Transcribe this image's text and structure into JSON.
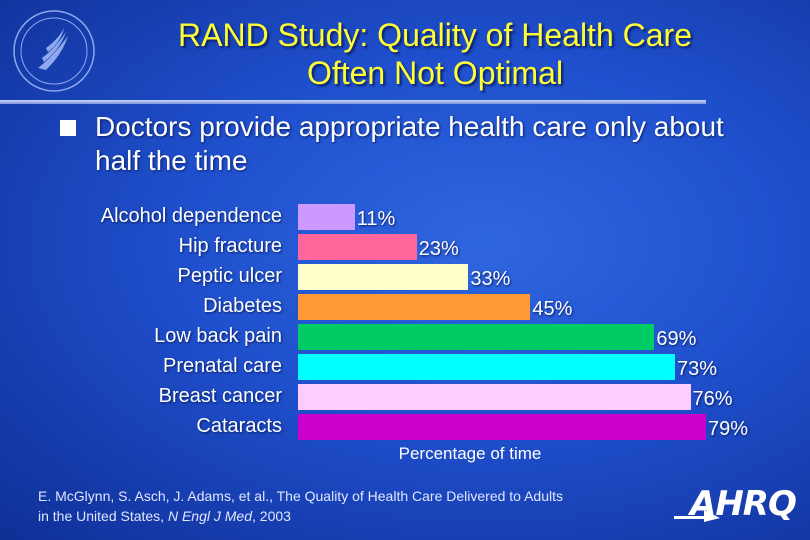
{
  "title": {
    "line1": "RAND Study:  Quality of Health Care",
    "line2": "Often Not Optimal"
  },
  "bullet": "Doctors provide appropriate health care only about half the time",
  "chart_data": {
    "type": "bar",
    "orientation": "horizontal",
    "categories": [
      "Alcohol dependence",
      "Hip fracture",
      "Peptic ulcer",
      "Diabetes",
      "Low back pain",
      "Prenatal care",
      "Breast cancer",
      "Cataracts"
    ],
    "values": [
      11,
      23,
      33,
      45,
      69,
      73,
      76,
      79
    ],
    "value_labels": [
      "11%",
      "23%",
      "33%",
      "45%",
      "69%",
      "73%",
      "76%",
      "79%"
    ],
    "colors": [
      "#cc99ff",
      "#ff6699",
      "#ffffcc",
      "#ff9933",
      "#00cc66",
      "#00ffff",
      "#ffccff",
      "#cc00cc"
    ],
    "xlabel": "Percentage of time",
    "ylabel": "",
    "xlim": [
      0,
      79
    ],
    "grid": false
  },
  "citation": {
    "line1": "E. McGlynn, S. Asch, J. Adams, et al., The Quality of Health Care Delivered to Adults",
    "line2_prefix": "in the United States, ",
    "line2_journal": "N Engl J Med",
    "line2_suffix": ", 2003"
  },
  "logo": {
    "text": "AHRQ",
    "seal_icon": "hhs-eagle-seal-icon",
    "arrow_icon": "ahrq-arrow-icon"
  }
}
